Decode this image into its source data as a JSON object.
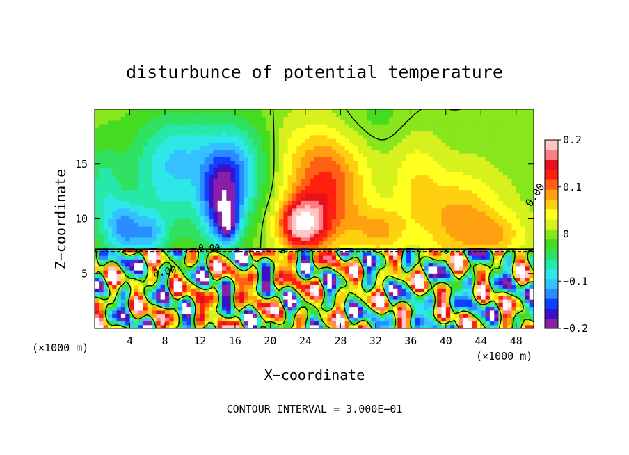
{
  "chart_data": {
    "type": "heatmap",
    "title": "disturbunce of potential temperature",
    "xlabel": "X−coordinate",
    "ylabel": "Z−coordinate",
    "x_unit": "(×1000 m)",
    "x_unit_right": "(×1000 m)",
    "footer": "CONTOUR INTERVAL = 3.000E−01",
    "contour_label": "0.00",
    "xlim": [
      0,
      50
    ],
    "ylim": [
      0,
      20
    ],
    "xticks": [
      4,
      8,
      12,
      16,
      20,
      24,
      28,
      32,
      36,
      40,
      44,
      48
    ],
    "yticks": [
      5,
      10,
      15
    ],
    "colorbar": {
      "range": [
        -0.2,
        0.2
      ],
      "tick_values": [
        0.2,
        0.1,
        0,
        -0.1,
        -0.2
      ],
      "tick_labels": [
        "0.2",
        "0.1",
        "0",
        "−0.1",
        "−0.2"
      ],
      "colors": [
        "#8a1fa8",
        "#3a10c8",
        "#1040ff",
        "#2a8cff",
        "#35c0ff",
        "#2ee8e8",
        "#26e8a8",
        "#30e060",
        "#44dc20",
        "#88e61c",
        "#d6f11e",
        "#ffff20",
        "#ffd010",
        "#ffa010",
        "#ff6014",
        "#ff2010",
        "#e8101a",
        "#ff7e84",
        "#ffc6c6"
      ]
    },
    "field": {
      "background": 0.0,
      "features": [
        {
          "x": 3.5,
          "z": 9.0,
          "amp": -0.11,
          "sx": 1.6,
          "sz": 1.8
        },
        {
          "x": 8.5,
          "z": 13.0,
          "amp": -0.07,
          "sx": 3.2,
          "sz": 3.6
        },
        {
          "x": 10.5,
          "z": 16.5,
          "amp": -0.05,
          "sx": 4.0,
          "sz": 2.5
        },
        {
          "x": 14.5,
          "z": 11.5,
          "amp": -0.15,
          "sx": 1.7,
          "sz": 2.8
        },
        {
          "x": 15.2,
          "z": 9.5,
          "amp": -0.1,
          "sx": 0.8,
          "sz": 1.2
        },
        {
          "x": 16.5,
          "z": 14.5,
          "amp": -0.08,
          "sx": 2.5,
          "sz": 3.0
        },
        {
          "x": 1.0,
          "z": 12.5,
          "amp": -0.06,
          "sx": 1.5,
          "sz": 3.0
        },
        {
          "x": 6.5,
          "z": 8.5,
          "amp": -0.07,
          "sx": 1.2,
          "sz": 1.3
        },
        {
          "x": 23.5,
          "z": 9.5,
          "amp": 0.17,
          "sx": 1.8,
          "sz": 1.6
        },
        {
          "x": 26.5,
          "z": 11.5,
          "amp": 0.1,
          "sx": 3.0,
          "sz": 3.5
        },
        {
          "x": 25.5,
          "z": 15.5,
          "amp": 0.05,
          "sx": 3.5,
          "sz": 3.0
        },
        {
          "x": 32.5,
          "z": 9.0,
          "amp": 0.07,
          "sx": 2.0,
          "sz": 1.5
        },
        {
          "x": 36.5,
          "z": 14.0,
          "amp": 0.04,
          "sx": 2.0,
          "sz": 3.0
        },
        {
          "x": 41.5,
          "z": 10.0,
          "amp": 0.08,
          "sx": 3.5,
          "sz": 3.0
        },
        {
          "x": 46.0,
          "z": 8.5,
          "amp": 0.05,
          "sx": 2.5,
          "sz": 1.5
        },
        {
          "x": 31.0,
          "z": 19.0,
          "amp": -0.02,
          "sx": 4.0,
          "sz": 2.0
        }
      ],
      "lower_layer_top": 7.2,
      "lower_layer_amp": 0.2
    }
  }
}
